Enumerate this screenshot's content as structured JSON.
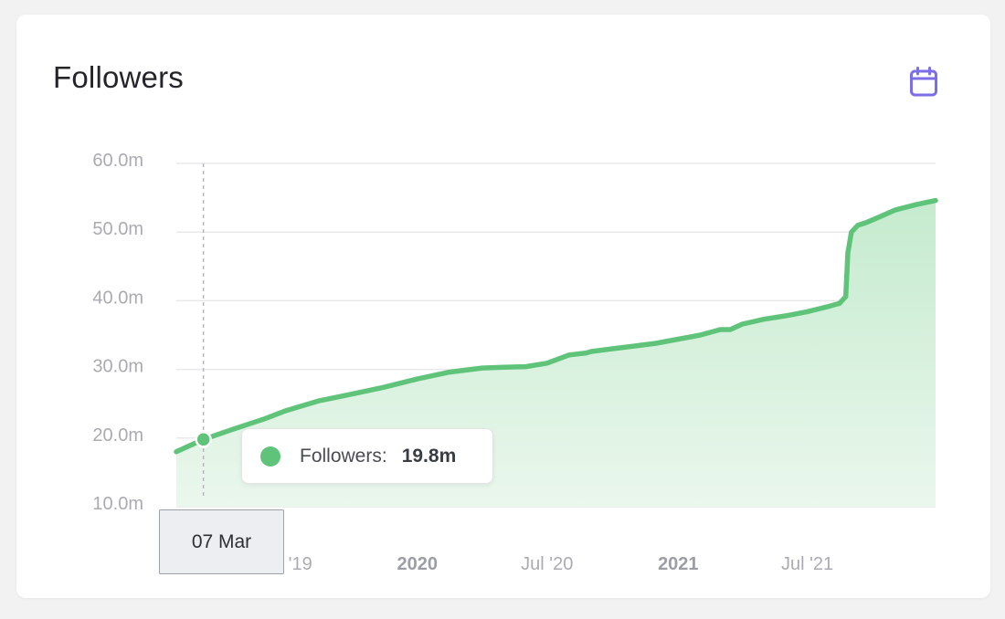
{
  "card": {
    "title": "Followers",
    "calendar_icon": "calendar-icon"
  },
  "colors": {
    "line": "#5fc47a",
    "area_top": "#c5ebce",
    "area_bottom": "#eaf7ed",
    "grid": "#e9e9ec",
    "accent": "#7b6ee6",
    "crosshair": "#b8babf"
  },
  "tooltip": {
    "label": "Followers:",
    "value": "19.8m"
  },
  "hover_date": "07 Mar",
  "chart_data": {
    "type": "area",
    "grid": true,
    "y_ticks": [
      "60.0m",
      "50.0m",
      "40.0m",
      "30.0m",
      "20.0m",
      "10.0m"
    ],
    "y_tick_values": [
      60,
      50,
      40,
      30,
      20,
      10
    ],
    "ylim": [
      10,
      60
    ],
    "x_ticks": [
      {
        "label": "Jul '19",
        "date": "2019-07-01",
        "bold": false
      },
      {
        "label": "2020",
        "date": "2020-01-01",
        "bold": true
      },
      {
        "label": "Jul '20",
        "date": "2020-07-01",
        "bold": false
      },
      {
        "label": "2021",
        "date": "2021-01-01",
        "bold": true
      },
      {
        "label": "Jul '21",
        "date": "2021-07-01",
        "bold": false
      }
    ],
    "xlim": [
      "2019-01-28",
      "2021-12-28"
    ],
    "series": [
      {
        "name": "Followers",
        "unit": "m",
        "x": [
          "2019-01-28",
          "2019-03-07",
          "2019-04-15",
          "2019-06-01",
          "2019-07-01",
          "2019-08-15",
          "2019-10-01",
          "2019-11-15",
          "2020-01-01",
          "2020-02-15",
          "2020-04-01",
          "2020-05-01",
          "2020-06-01",
          "2020-07-01",
          "2020-08-01",
          "2020-08-25",
          "2020-09-01",
          "2020-10-01",
          "2020-11-01",
          "2020-12-01",
          "2021-01-01",
          "2021-02-01",
          "2021-03-01",
          "2021-03-15",
          "2021-04-01",
          "2021-05-01",
          "2021-06-01",
          "2021-07-01",
          "2021-08-01",
          "2021-08-15",
          "2021-08-24",
          "2021-08-27",
          "2021-09-01",
          "2021-09-10",
          "2021-09-22",
          "2021-10-10",
          "2021-11-01",
          "2021-12-01",
          "2021-12-28"
        ],
        "y": [
          18.0,
          19.8,
          21.2,
          22.8,
          24.0,
          25.4,
          26.4,
          27.4,
          28.6,
          29.6,
          30.2,
          30.3,
          30.4,
          30.9,
          32.1,
          32.4,
          32.6,
          33.0,
          33.4,
          33.8,
          34.4,
          35.0,
          35.8,
          35.8,
          36.6,
          37.3,
          37.8,
          38.4,
          39.2,
          39.6,
          40.6,
          47.0,
          50.0,
          51.0,
          51.4,
          52.2,
          53.2,
          54.0,
          54.6
        ]
      }
    ]
  }
}
